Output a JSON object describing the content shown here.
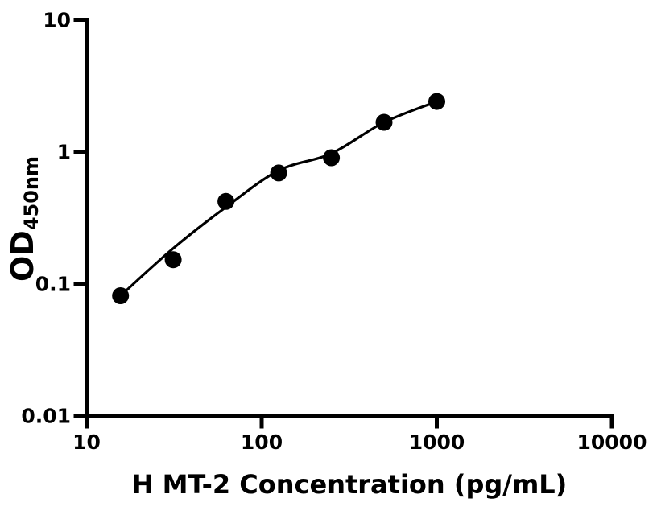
{
  "figure": {
    "background_color": "#ffffff",
    "ink_color": "#000000"
  },
  "chart_data": {
    "type": "scatter",
    "title": "",
    "xlabel": "H MT-2 Concentration (pg/mL)",
    "ylabel": "OD",
    "ylabel_subscript": "450nm",
    "x_scale": "log10",
    "y_scale": "log10",
    "xlim": [
      10,
      10000
    ],
    "ylim": [
      0.01,
      10
    ],
    "x_ticks": [
      10,
      100,
      1000,
      10000
    ],
    "x_tick_labels": [
      "10",
      "100",
      "1000",
      "10000"
    ],
    "y_ticks": [
      10,
      1,
      0.1,
      0.01
    ],
    "y_tick_labels": [
      "10",
      "1",
      "0.1",
      "0.01"
    ],
    "grid": false,
    "legend": null,
    "marker_style": "filled-circle",
    "series": [
      {
        "name": "standard-points",
        "type": "scatter",
        "color": "#000000",
        "x": [
          15.63,
          31.25,
          62.5,
          125,
          250,
          500,
          1000
        ],
        "y": [
          0.081,
          0.152,
          0.42,
          0.69,
          0.9,
          1.67,
          2.4
        ]
      },
      {
        "name": "fitted-curve",
        "type": "line",
        "color": "#000000",
        "x": [
          15.63,
          31.25,
          62.5,
          125,
          250,
          500,
          1000
        ],
        "y": [
          0.081,
          0.185,
          0.38,
          0.72,
          0.97,
          1.67,
          2.4
        ]
      }
    ]
  }
}
